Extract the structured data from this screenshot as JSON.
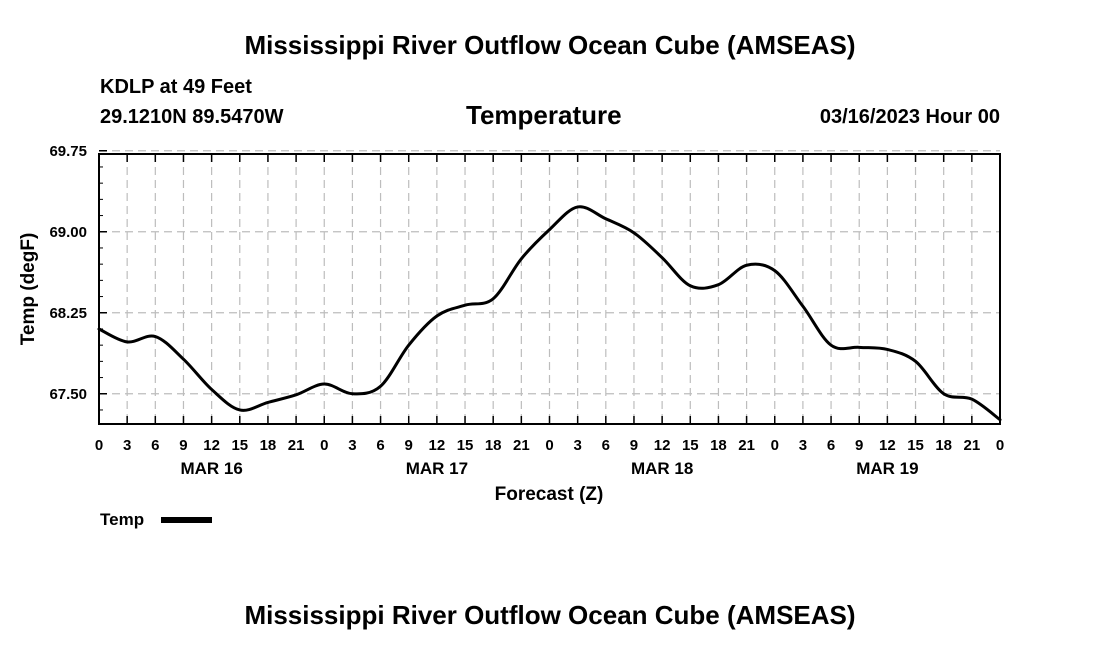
{
  "page": {
    "title_top": "Mississippi River Outflow Ocean Cube (AMSEAS)",
    "title_bottom": "Mississippi River Outflow Ocean Cube (AMSEAS)",
    "station": "KDLP at 49 Feet",
    "location": "29.1210N  89.5470W",
    "chart_title": "Temperature",
    "datetime": "03/16/2023 Hour 00",
    "legend_label": "Temp"
  },
  "chart_data": {
    "type": "line",
    "title": "Temperature",
    "xlabel": "Forecast (Z)",
    "ylabel": "Temp (degF)",
    "xlim": [
      0,
      96
    ],
    "ylim": [
      67.22,
      69.72
    ],
    "yticks": [
      67.5,
      68.25,
      69.0,
      69.75
    ],
    "ytick_labels": [
      "67.50",
      "68.25",
      "69.00",
      "69.75"
    ],
    "xtick_labels": [
      "0",
      "3",
      "6",
      "9",
      "12",
      "15",
      "18",
      "21",
      "0",
      "3",
      "6",
      "9",
      "12",
      "15",
      "18",
      "21",
      "0",
      "3",
      "6",
      "9",
      "12",
      "15",
      "18",
      "21",
      "0",
      "3",
      "6",
      "9",
      "12",
      "15",
      "18",
      "21",
      "0"
    ],
    "date_labels": [
      {
        "hour": 12,
        "label": "MAR 16"
      },
      {
        "hour": 36,
        "label": "MAR 17"
      },
      {
        "hour": 60,
        "label": "MAR 18"
      },
      {
        "hour": 84,
        "label": "MAR 19"
      }
    ],
    "grid": true,
    "series": [
      {
        "name": "Temp",
        "x": [
          0,
          3,
          6,
          9,
          12,
          15,
          18,
          21,
          24,
          27,
          30,
          33,
          36,
          39,
          42,
          45,
          48,
          51,
          54,
          57,
          60,
          63,
          66,
          69,
          72,
          75,
          78,
          81,
          84,
          87,
          90,
          93,
          96
        ],
        "y": [
          68.1,
          67.98,
          68.03,
          67.82,
          67.54,
          67.35,
          67.42,
          67.49,
          67.59,
          67.5,
          67.57,
          67.95,
          68.22,
          68.32,
          68.38,
          68.75,
          69.02,
          69.23,
          69.12,
          68.99,
          68.76,
          68.5,
          68.51,
          68.69,
          68.64,
          68.31,
          67.95,
          67.93,
          67.91,
          67.8,
          67.5,
          67.45,
          67.26
        ]
      }
    ]
  }
}
